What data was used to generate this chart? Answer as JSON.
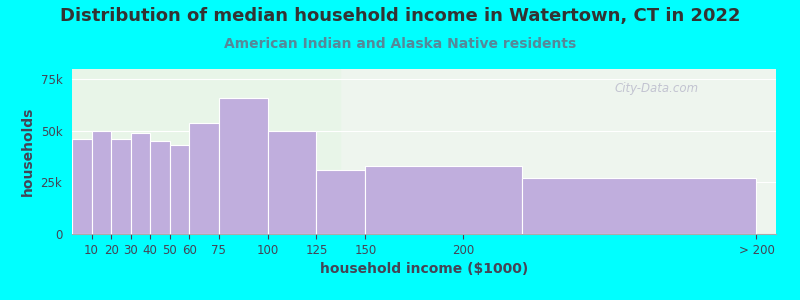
{
  "title": "Distribution of median household income in Watertown, CT in 2022",
  "subtitle": "American Indian and Alaska Native residents",
  "xlabel": "household income ($1000)",
  "ylabel": "households",
  "background_outer": "#00FFFF",
  "background_inner_left": "#e8f5e8",
  "background_inner_right": "#eef5ee",
  "bar_color": "#c0aedd",
  "bar_edge_color": "#aа99cc",
  "title_color": "#333333",
  "subtitle_color": "#558899",
  "axis_label_color": "#444455",
  "tick_color": "#444455",
  "watermark_color": "#bbbbcc",
  "bin_lefts": [
    0,
    10,
    20,
    30,
    40,
    50,
    60,
    75,
    100,
    125,
    150,
    230
  ],
  "bin_rights": [
    10,
    20,
    30,
    40,
    50,
    60,
    75,
    100,
    125,
    150,
    230,
    350
  ],
  "values": [
    46000,
    50000,
    46000,
    49000,
    45000,
    43000,
    54000,
    66000,
    50000,
    31000,
    33000,
    27000
  ],
  "xtick_positions": [
    10,
    20,
    30,
    40,
    50,
    60,
    75,
    100,
    125,
    150,
    200,
    350
  ],
  "xtick_labels": [
    "10",
    "20",
    "30",
    "40",
    "50",
    "60",
    "75",
    "100",
    "125",
    "150",
    "200",
    "> 200"
  ],
  "yticks": [
    0,
    25000,
    50000,
    75000
  ],
  "ytick_labels": [
    "0",
    "25k",
    "50k",
    "75k"
  ],
  "ylim": [
    0,
    80000
  ],
  "xlim": [
    0,
    360
  ],
  "title_fontsize": 13,
  "subtitle_fontsize": 10,
  "axis_label_fontsize": 10,
  "tick_fontsize": 8.5
}
